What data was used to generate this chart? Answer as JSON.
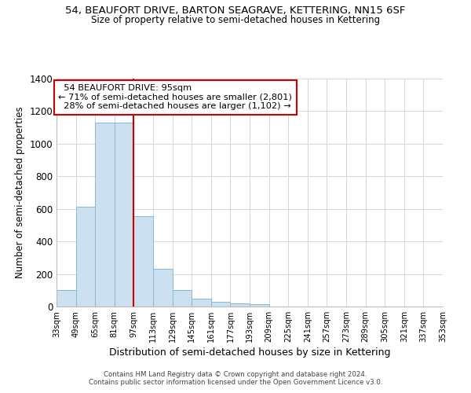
{
  "title": "54, BEAUFORT DRIVE, BARTON SEAGRAVE, KETTERING, NN15 6SF",
  "subtitle": "Size of property relative to semi-detached houses in Kettering",
  "xlabel": "Distribution of semi-detached houses by size in Kettering",
  "ylabel": "Number of semi-detached properties",
  "bin_edges": [
    33,
    49,
    65,
    81,
    97,
    113,
    129,
    145,
    161,
    177,
    193,
    209,
    225,
    241,
    257,
    273,
    289,
    305,
    321,
    337,
    353
  ],
  "bar_heights": [
    100,
    615,
    1130,
    1130,
    555,
    230,
    100,
    50,
    30,
    20,
    15,
    0,
    0,
    0,
    0,
    0,
    0,
    0,
    0,
    0
  ],
  "bar_color": "#cce0f0",
  "bar_edgecolor": "#88b8d8",
  "property_line_x": 97,
  "property_line_color": "#cc0000",
  "annotation_title": "54 BEAUFORT DRIVE: 95sqm",
  "annotation_line1": "← 71% of semi-detached houses are smaller (2,801)",
  "annotation_line2": "28% of semi-detached houses are larger (1,102) →",
  "annotation_box_edgecolor": "#cc0000",
  "ylim": [
    0,
    1400
  ],
  "yticks": [
    0,
    200,
    400,
    600,
    800,
    1000,
    1200,
    1400
  ],
  "xtick_labels": [
    "33sqm",
    "49sqm",
    "65sqm",
    "81sqm",
    "97sqm",
    "113sqm",
    "129sqm",
    "145sqm",
    "161sqm",
    "177sqm",
    "193sqm",
    "209sqm",
    "225sqm",
    "241sqm",
    "257sqm",
    "273sqm",
    "289sqm",
    "305sqm",
    "321sqm",
    "337sqm",
    "353sqm"
  ],
  "footer1": "Contains HM Land Registry data © Crown copyright and database right 2024.",
  "footer2": "Contains public sector information licensed under the Open Government Licence v3.0.",
  "background_color": "#ffffff",
  "grid_color": "#d0d8e0"
}
